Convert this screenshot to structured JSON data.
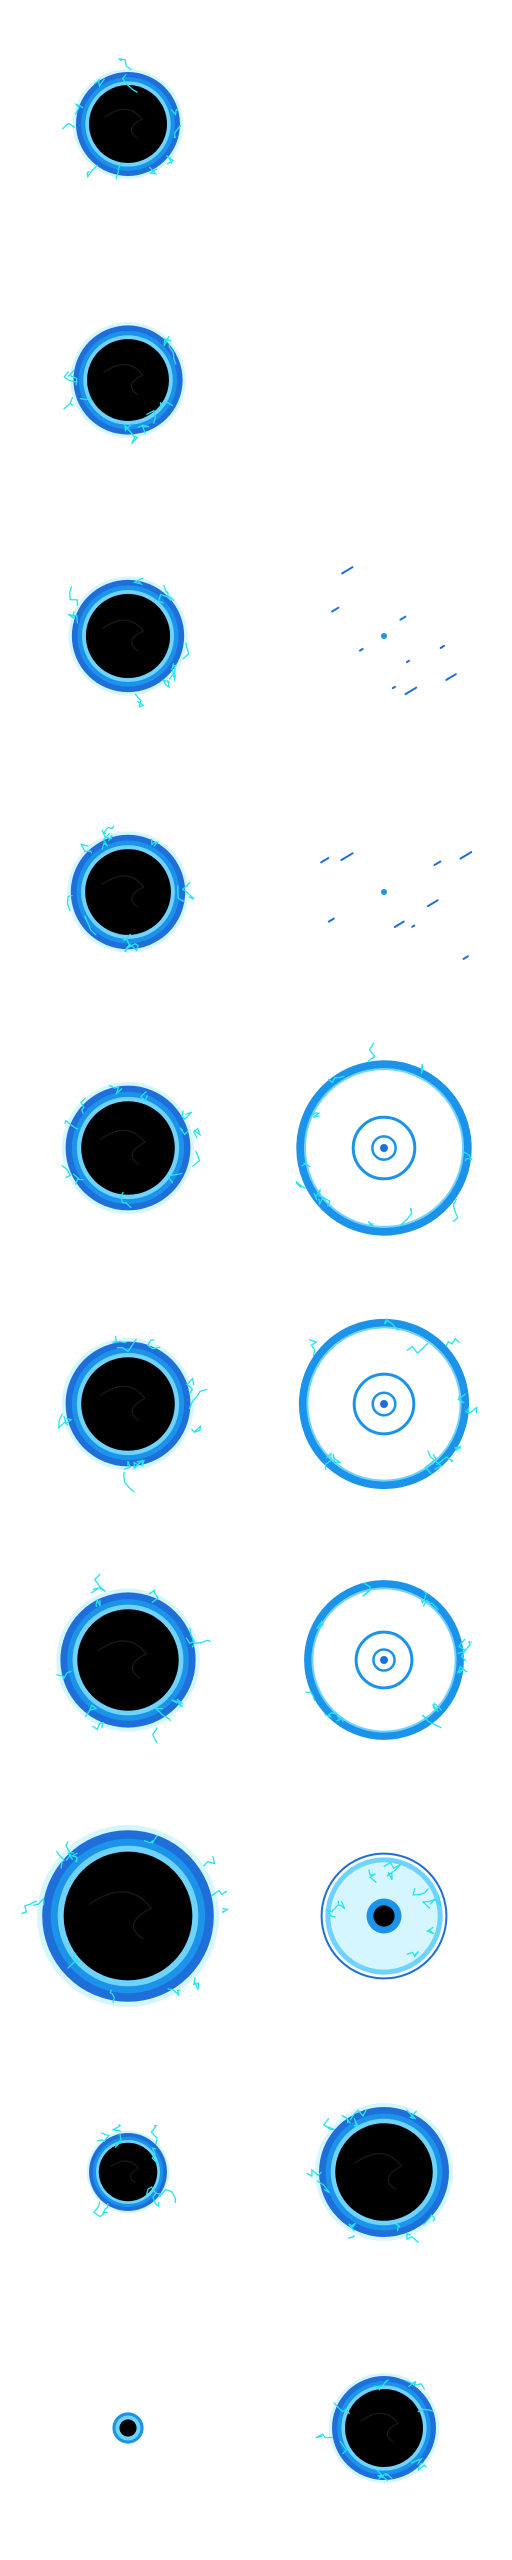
{
  "sprite_sheet": {
    "colors": {
      "background": "#ffffff",
      "core": "#000000",
      "ring_outer": "#1e6fd9",
      "ring_mid": "#1b93ea",
      "ring_inner": "#6fd3ff",
      "glow": "#d6f6ff",
      "spark": "#25e3f2"
    },
    "grid": {
      "columns": 2,
      "rows": 10
    },
    "frames": [
      {
        "row": 1,
        "col": 1,
        "kind": "black-hole",
        "scale": 1.0
      },
      {
        "row": 2,
        "col": 1,
        "kind": "black-hole",
        "scale": 1.05
      },
      {
        "row": 3,
        "col": 1,
        "kind": "black-hole",
        "scale": 1.08
      },
      {
        "row": 3,
        "col": 2,
        "kind": "particles",
        "scale": 0.3
      },
      {
        "row": 4,
        "col": 1,
        "kind": "black-hole",
        "scale": 1.1
      },
      {
        "row": 4,
        "col": 2,
        "kind": "particles",
        "scale": 0.5
      },
      {
        "row": 5,
        "col": 1,
        "kind": "black-hole",
        "scale": 1.2
      },
      {
        "row": 5,
        "col": 2,
        "kind": "shockwave",
        "scale": 1.6
      },
      {
        "row": 6,
        "col": 1,
        "kind": "black-hole",
        "scale": 1.2
      },
      {
        "row": 6,
        "col": 2,
        "kind": "shockwave",
        "scale": 1.55
      },
      {
        "row": 7,
        "col": 1,
        "kind": "black-hole",
        "scale": 1.3
      },
      {
        "row": 7,
        "col": 2,
        "kind": "shockwave",
        "scale": 1.45
      },
      {
        "row": 8,
        "col": 1,
        "kind": "black-hole",
        "scale": 1.65
      },
      {
        "row": 8,
        "col": 2,
        "kind": "collapse",
        "scale": 1.2
      },
      {
        "row": 9,
        "col": 1,
        "kind": "black-hole",
        "scale": 0.75
      },
      {
        "row": 9,
        "col": 2,
        "kind": "black-hole",
        "scale": 1.25
      },
      {
        "row": 10,
        "col": 1,
        "kind": "dot",
        "scale": 0.3
      },
      {
        "row": 10,
        "col": 2,
        "kind": "black-hole",
        "scale": 1.0
      }
    ]
  }
}
